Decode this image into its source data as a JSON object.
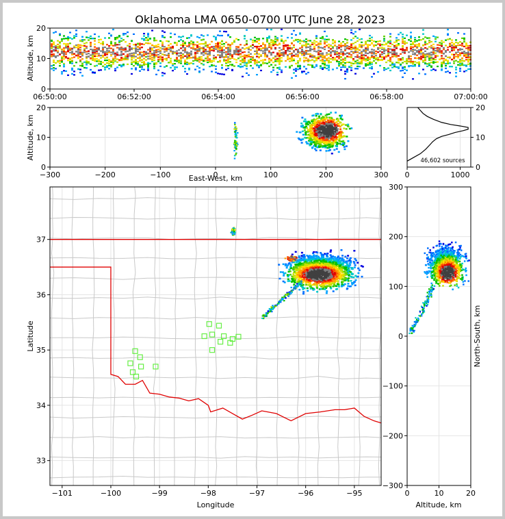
{
  "title": "Oklahoma LMA 0650-0700 UTC June 28, 2023",
  "chart_data": [
    {
      "id": "time_height",
      "type": "heatmap",
      "ylabel": "Altitude, km",
      "ylim": [
        0,
        20
      ],
      "yticks": [
        "0",
        "10",
        "20"
      ],
      "xticks": [
        "06:50:00",
        "06:52:00",
        "06:54:00",
        "06:56:00",
        "06:58:00",
        "07:00:00"
      ],
      "xlim": [
        "06:50:00",
        "07:00:00"
      ]
    },
    {
      "id": "ew_height",
      "type": "heatmap",
      "xlabel": "East-West, km",
      "ylabel": "Altitude, km",
      "xlim": [
        -300,
        300
      ],
      "ylim": [
        0,
        20
      ],
      "xticks": [
        "−300",
        "−200",
        "−100",
        "0",
        "100",
        "200",
        "300"
      ],
      "yticks": [
        "0",
        "10",
        "20"
      ]
    },
    {
      "id": "altitude_histogram",
      "type": "line",
      "annotation": "46,602 sources",
      "xlim": [
        0,
        1200
      ],
      "ylim": [
        0,
        20
      ],
      "xticks": [
        "0",
        "1000"
      ],
      "yticks": [
        "0",
        "10",
        "20"
      ],
      "points": [
        [
          0,
          2
        ],
        [
          100,
          3
        ],
        [
          250,
          4.5
        ],
        [
          350,
          6
        ],
        [
          430,
          7.5
        ],
        [
          480,
          8.5
        ],
        [
          550,
          9.5
        ],
        [
          650,
          10.3
        ],
        [
          780,
          10.9
        ],
        [
          900,
          11.6
        ],
        [
          1050,
          12.2
        ],
        [
          1150,
          12.7
        ],
        [
          1150,
          13.3
        ],
        [
          1000,
          13.8
        ],
        [
          820,
          14.3
        ],
        [
          650,
          15
        ],
        [
          500,
          16
        ],
        [
          380,
          17
        ],
        [
          300,
          18
        ],
        [
          250,
          19
        ],
        [
          200,
          20
        ]
      ]
    },
    {
      "id": "plan_view",
      "type": "heatmap",
      "xlabel": "Longitude",
      "ylabel": "Latitude",
      "xlim": [
        -101.25,
        -94.45
      ],
      "ylim": [
        32.55,
        37.95
      ],
      "xticks": [
        "−101",
        "−100",
        "−99",
        "−98",
        "−97",
        "−96",
        "−95"
      ],
      "yticks": [
        "33",
        "34",
        "35",
        "36",
        "37"
      ],
      "stations": [
        [
          -99.5,
          34.98
        ],
        [
          -99.4,
          34.87
        ],
        [
          -99.6,
          34.76
        ],
        [
          -99.38,
          34.7
        ],
        [
          -99.55,
          34.6
        ],
        [
          -99.48,
          34.52
        ],
        [
          -99.08,
          34.7
        ],
        [
          -97.98,
          35.47
        ],
        [
          -97.78,
          35.44
        ],
        [
          -98.08,
          35.25
        ],
        [
          -97.92,
          35.28
        ],
        [
          -97.68,
          35.25
        ],
        [
          -97.5,
          35.2
        ],
        [
          -97.38,
          35.24
        ],
        [
          -97.55,
          35.13
        ],
        [
          -97.75,
          35.15
        ],
        [
          -97.92,
          35.0
        ]
      ]
    },
    {
      "id": "ns_height",
      "type": "heatmap",
      "xlabel": "Altitude, km",
      "ylabel": "North-South, km",
      "xlim": [
        0,
        20
      ],
      "ylim": [
        -300,
        300
      ],
      "xticks": [
        "0",
        "10",
        "20"
      ],
      "yticks": [
        "300",
        "200",
        "100",
        "0",
        "−100",
        "−200",
        "−300"
      ]
    }
  ]
}
